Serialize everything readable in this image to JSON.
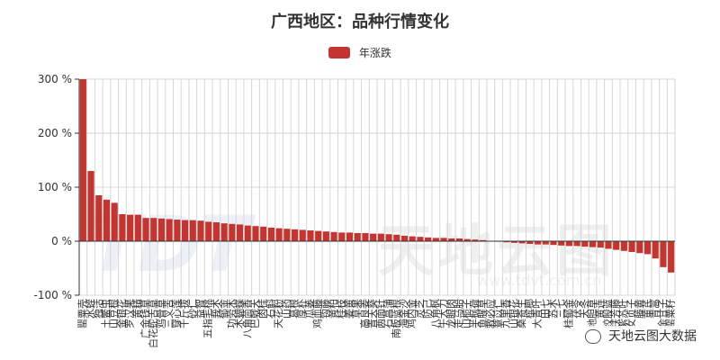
{
  "legend": {
    "label": "年涨跌",
    "color": "#c23531"
  },
  "watermark": {
    "logo": "TDT",
    "brand": "天地云图",
    "url": "www.tdvt.com.cn"
  },
  "source": {
    "label": "天地云图大数据",
    "icon": "wechat-icon"
  },
  "chart_data": {
    "type": "bar",
    "title": "广西地区：品种行情变化",
    "xlabel": "",
    "ylabel": "",
    "ylim": [
      -100,
      300
    ],
    "yticks": [
      -100,
      0,
      100,
      200,
      300
    ],
    "ytick_labels": [
      "-100 %",
      "0 %",
      "100 %",
      "200 %",
      "300 %"
    ],
    "grid": true,
    "legend_position": "top-center",
    "bar_color": "#c23531",
    "categories": [
      "罂粟壳",
      "水蛭",
      "独活",
      "土鳖虫",
      "山豆根",
      "金银花",
      "罗汉果",
      "黄精",
      "广金钱草",
      "白花蛇舌草",
      "鸡骨草",
      "三叉苦",
      "穿心莲",
      "千斤拔",
      "砂仁",
      "益智",
      "五指毛桃",
      "莪术",
      "郁金",
      "功劳木",
      "木蝴蝶",
      "八角茴香",
      "巴戟天",
      "肉桂",
      "石斛",
      "天花粉",
      "山药",
      "葛根",
      "厚朴",
      "瓜蒌",
      "鸡血藤",
      "钩藤",
      "黄柏",
      "桂枝",
      "姜黄",
      "草果",
      "高良姜",
      "青天葵",
      "两面针",
      "石菖蒲",
      "南板蓝根",
      "海金沙",
      "鸡内金",
      "灵芝",
      "防己",
      "八角枫",
      "牛大力",
      "龙眼肉",
      "走马胎",
      "山栀子",
      "半枫荷",
      "鱼腥草",
      "救必应",
      "薏苡仁",
      "九里香",
      "山银花",
      "桑寄生",
      "槟榔",
      "大青叶",
      "田七",
      "苏木",
      "三七",
      "桂郁金",
      "茯苓",
      "天冬",
      "地胆草",
      "黄连",
      "绞股蓝",
      "扶芳藤",
      "紫苏叶",
      "女贞子",
      "藤黄",
      "黄芪",
      "青蒿",
      "余甘子",
      "罂粟籽"
    ],
    "values": [
      300,
      130,
      85,
      77,
      71,
      50,
      49,
      49,
      43,
      43,
      42,
      41,
      40,
      39,
      39,
      38,
      36,
      35,
      33,
      32,
      31,
      29,
      28,
      27,
      25,
      24,
      23,
      22,
      21,
      20,
      19,
      18,
      17,
      16,
      16,
      15,
      15,
      14,
      14,
      13,
      12,
      10,
      9,
      8,
      7,
      6,
      6,
      5,
      5,
      4,
      3,
      2,
      0,
      -1,
      -2,
      -3,
      -4,
      -5,
      -6,
      -6,
      -7,
      -8,
      -9,
      -9,
      -10,
      -11,
      -12,
      -14,
      -16,
      -18,
      -20,
      -22,
      -24,
      -32,
      -48,
      -58
    ]
  }
}
